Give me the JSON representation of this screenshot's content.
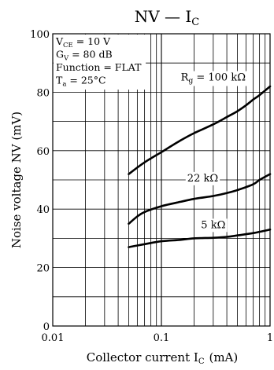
{
  "chart_data": {
    "type": "line",
    "title": "NV — I",
    "title_sub": "C",
    "xlabel": "Collector current  I",
    "xlabel_sub": "C",
    "xlabel_unit": "(mA)",
    "ylabel": "Noise voltage  NV  (mV)",
    "x_scale": "log",
    "xlim": [
      0.01,
      1
    ],
    "ylim": [
      0,
      100
    ],
    "x_ticks": [
      {
        "value": 0.01,
        "label": "0.01"
      },
      {
        "value": 0.1,
        "label": "0.1"
      },
      {
        "value": 1,
        "label": "1"
      }
    ],
    "y_ticks": [
      {
        "value": 0,
        "label": "0"
      },
      {
        "value": 20,
        "label": "20"
      },
      {
        "value": 40,
        "label": "40"
      },
      {
        "value": 60,
        "label": "60"
      },
      {
        "value": 80,
        "label": "80"
      },
      {
        "value": 100,
        "label": "100"
      }
    ],
    "grid": true,
    "conditions": [
      {
        "main": "V",
        "sub": "CE",
        "rest": " = 10 V"
      },
      {
        "main": "G",
        "sub": "V",
        "rest": " = 80 dB"
      },
      {
        "main": "Function = FLAT",
        "sub": "",
        "rest": ""
      },
      {
        "main": "T",
        "sub": "a",
        "rest": " = 25°C"
      }
    ],
    "series": [
      {
        "name": "R = 100 kΩ",
        "label_main": "R",
        "label_sub": "g",
        "label_rest": " = 100 kΩ",
        "x": [
          0.05,
          0.07,
          0.1,
          0.15,
          0.2,
          0.3,
          0.4,
          0.5,
          0.6,
          0.7,
          0.8,
          1.0
        ],
        "y": [
          52,
          56,
          59.5,
          63.5,
          66,
          69,
          71.5,
          73.5,
          75.5,
          77.5,
          79,
          82
        ]
      },
      {
        "name": "22 kΩ",
        "label_main": "22 kΩ",
        "label_sub": "",
        "label_rest": "",
        "x": [
          0.05,
          0.06,
          0.07,
          0.1,
          0.15,
          0.2,
          0.3,
          0.4,
          0.5,
          0.7,
          0.8,
          1.0
        ],
        "y": [
          35,
          37.5,
          39,
          41,
          42.5,
          43.5,
          44.5,
          45.5,
          46.5,
          48.5,
          50,
          52
        ]
      },
      {
        "name": "5 kΩ",
        "label_main": "5 kΩ",
        "label_sub": "",
        "label_rest": "",
        "x": [
          0.05,
          0.07,
          0.1,
          0.15,
          0.2,
          0.3,
          0.4,
          0.5,
          0.7,
          1.0
        ],
        "y": [
          27,
          28,
          29,
          29.5,
          30,
          30.2,
          30.5,
          31,
          31.8,
          33
        ]
      }
    ]
  }
}
